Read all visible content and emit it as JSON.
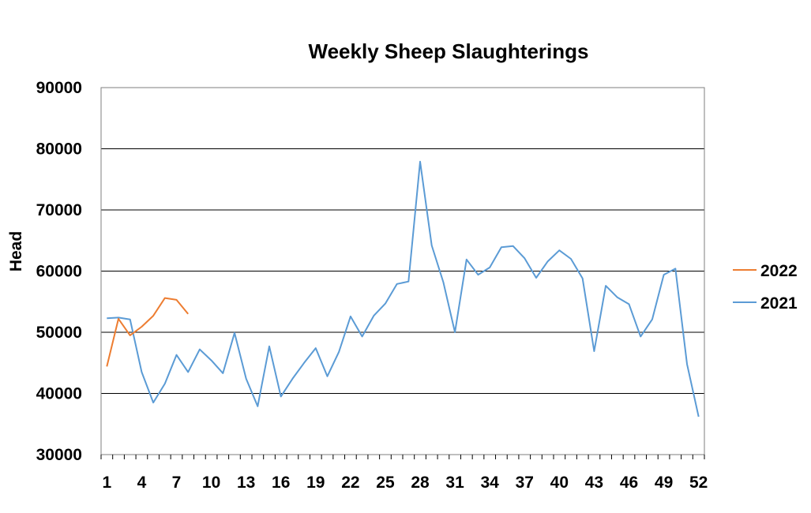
{
  "chart_data": {
    "type": "line",
    "title": "Weekly Sheep Slaughterings",
    "xlabel": "",
    "ylabel": "Head",
    "ylim": [
      30000,
      90000
    ],
    "yticks": [
      "30000",
      "40000",
      "50000",
      "60000",
      "70000",
      "80000",
      "90000"
    ],
    "xlim": [
      1,
      52
    ],
    "xtick_labels": [
      "1",
      "4",
      "7",
      "10",
      "13",
      "16",
      "19",
      "22",
      "25",
      "28",
      "31",
      "34",
      "37",
      "40",
      "43",
      "46",
      "49",
      "52"
    ],
    "grid": "horizontal",
    "legend_position": "right",
    "series": [
      {
        "name": "2022",
        "color": "#ED7D31",
        "x": [
          1,
          2,
          3,
          4,
          5,
          6,
          7,
          8
        ],
        "values": [
          44400,
          52200,
          49500,
          50900,
          52700,
          55600,
          55300,
          53000
        ]
      },
      {
        "name": "2021",
        "color": "#5B9BD5",
        "x": [
          1,
          2,
          3,
          4,
          5,
          6,
          7,
          8,
          9,
          10,
          11,
          12,
          13,
          14,
          15,
          16,
          17,
          18,
          19,
          20,
          21,
          22,
          23,
          24,
          25,
          26,
          27,
          28,
          29,
          30,
          31,
          32,
          33,
          34,
          35,
          36,
          37,
          38,
          39,
          40,
          41,
          42,
          43,
          44,
          45,
          46,
          47,
          48,
          49,
          50,
          51,
          52
        ],
        "values": [
          52300,
          52400,
          52100,
          43500,
          38500,
          41600,
          46300,
          43500,
          47200,
          45400,
          43300,
          49900,
          42400,
          37900,
          47700,
          39500,
          42400,
          45000,
          47400,
          42800,
          46800,
          52600,
          49300,
          52700,
          54700,
          57900,
          58300,
          77900,
          64200,
          58200,
          50000,
          61900,
          59400,
          60600,
          63900,
          64100,
          62100,
          58900,
          61600,
          63400,
          62000,
          58800,
          46900,
          57600,
          55700,
          54600,
          49300,
          52100,
          59400,
          60400,
          44800,
          36200
        ]
      }
    ]
  }
}
